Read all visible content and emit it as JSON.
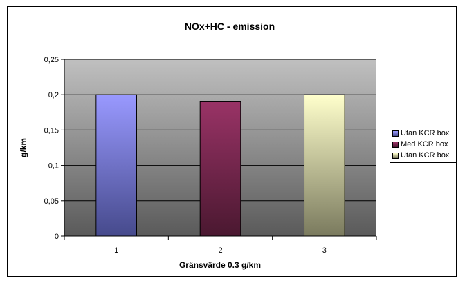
{
  "chart_data": {
    "type": "bar",
    "title": "NOx+HC - emission",
    "xlabel": "Gränsvärde 0.3 g/km",
    "ylabel": "g/km",
    "categories": [
      "1",
      "2",
      "3"
    ],
    "values": [
      0.2,
      0.19,
      0.2
    ],
    "ylim": [
      0,
      0.25
    ],
    "yticks": [
      0,
      0.05,
      0.1,
      0.15,
      0.2,
      0.25
    ],
    "ytick_labels": [
      "0",
      "0,05",
      "0,1",
      "0,15",
      "0,2",
      "0,25"
    ],
    "grid": true,
    "legend_position": "right",
    "series": [
      {
        "name": "Utan KCR box",
        "value": 0.2,
        "color_top": "#9999ff",
        "color_bottom": "#464a8c"
      },
      {
        "name": "Med KCR box",
        "value": 0.19,
        "color_top": "#993366",
        "color_bottom": "#4a1830"
      },
      {
        "name": "Utan KCR box",
        "value": 0.2,
        "color_top": "#ffffcc",
        "color_bottom": "#7a7a5e"
      }
    ],
    "plot_background": {
      "top": "#c0c0c0",
      "bottom": "#5a5a5a"
    }
  }
}
